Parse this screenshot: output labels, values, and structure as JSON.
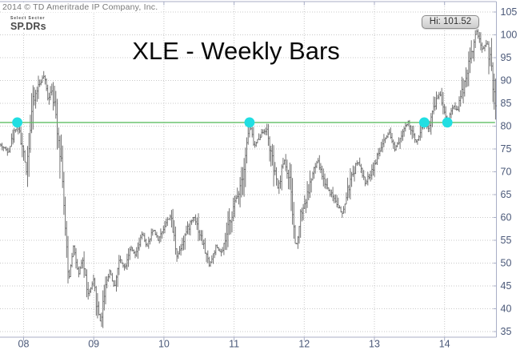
{
  "header": {
    "copyright": "2014 © TD Ameritrade IP Company, Inc.",
    "logo_top": "Select Sector",
    "logo_bottom": "SP.DRs"
  },
  "title": "XLE - Weekly Bars",
  "hi_annotation_label": "Hi: 101.52",
  "colors": {
    "bars": "#606060",
    "grid": "#c9c9c9",
    "axis": "#a8aec6",
    "tick_label": "#4a5878",
    "support_line": "#5fbf63",
    "marker": "#21dee2",
    "title": "#0a0a0a",
    "copyright": "#787878"
  },
  "chart_data": {
    "type": "ohlc-bar",
    "title": "XLE - Weekly Bars",
    "symbol": "XLE",
    "bar_interval": "weekly",
    "grid": true,
    "x_axis": {
      "tick_labels": [
        "08",
        "09",
        "10",
        "11",
        "12",
        "13",
        "14"
      ],
      "tick_years": [
        2008,
        2009,
        2010,
        2011,
        2012,
        2013,
        2014
      ],
      "start": 2007.655,
      "end": 2014.745
    },
    "y_axis": {
      "min": 35,
      "max": 105,
      "step": 5,
      "side": "right"
    },
    "high_annotation": {
      "label": "Hi: 101.52",
      "value": 101.52,
      "year": 2014.46
    },
    "support_line": {
      "value": 80.8,
      "start_year": 2007.655,
      "end_year": 2014.72
    },
    "touch_markers": [
      {
        "year": 2007.91,
        "value": 80.8
      },
      {
        "year": 2011.22,
        "value": 80.8
      },
      {
        "year": 2013.71,
        "value": 80.8
      },
      {
        "year": 2014.04,
        "value": 80.8
      }
    ],
    "weekly_close_keypoints": [
      [
        2007.655,
        76
      ],
      [
        2007.78,
        74.5
      ],
      [
        2007.91,
        80.8
      ],
      [
        2008.04,
        70.5
      ],
      [
        2008.12,
        84
      ],
      [
        2008.2,
        88.5
      ],
      [
        2008.29,
        91
      ],
      [
        2008.35,
        86
      ],
      [
        2008.4,
        88.5
      ],
      [
        2008.48,
        80
      ],
      [
        2008.55,
        71
      ],
      [
        2008.6,
        55
      ],
      [
        2008.64,
        46
      ],
      [
        2008.71,
        54
      ],
      [
        2008.78,
        47
      ],
      [
        2008.84,
        51
      ],
      [
        2008.92,
        43
      ],
      [
        2009.0,
        46
      ],
      [
        2009.04,
        41
      ],
      [
        2009.1,
        37
      ],
      [
        2009.16,
        45
      ],
      [
        2009.23,
        48.5
      ],
      [
        2009.29,
        44.5
      ],
      [
        2009.37,
        51
      ],
      [
        2009.44,
        49
      ],
      [
        2009.52,
        53.5
      ],
      [
        2009.6,
        51.5
      ],
      [
        2009.69,
        56.5
      ],
      [
        2009.76,
        53.5
      ],
      [
        2009.85,
        57.5
      ],
      [
        2009.92,
        55
      ],
      [
        2010.0,
        58
      ],
      [
        2010.09,
        60.5
      ],
      [
        2010.19,
        51.5
      ],
      [
        2010.31,
        56.5
      ],
      [
        2010.43,
        60.5
      ],
      [
        2010.54,
        55
      ],
      [
        2010.65,
        49.5
      ],
      [
        2010.74,
        53.5
      ],
      [
        2010.83,
        52
      ],
      [
        2010.97,
        61
      ],
      [
        2011.06,
        65.5
      ],
      [
        2011.14,
        71
      ],
      [
        2011.22,
        80.7
      ],
      [
        2011.29,
        75.5
      ],
      [
        2011.37,
        78
      ],
      [
        2011.46,
        79.5
      ],
      [
        2011.56,
        71
      ],
      [
        2011.63,
        66
      ],
      [
        2011.71,
        73
      ],
      [
        2011.79,
        68
      ],
      [
        2011.88,
        53
      ],
      [
        2011.95,
        61
      ],
      [
        2012.03,
        64
      ],
      [
        2012.11,
        69
      ],
      [
        2012.19,
        72.5
      ],
      [
        2012.28,
        68
      ],
      [
        2012.37,
        65.5
      ],
      [
        2012.46,
        63.5
      ],
      [
        2012.54,
        60.5
      ],
      [
        2012.64,
        67
      ],
      [
        2012.76,
        72.5
      ],
      [
        2012.87,
        67.5
      ],
      [
        2013.0,
        71.5
      ],
      [
        2013.1,
        75.5
      ],
      [
        2013.21,
        78.5
      ],
      [
        2013.29,
        75
      ],
      [
        2013.39,
        78.5
      ],
      [
        2013.48,
        80.8
      ],
      [
        2013.59,
        76.5
      ],
      [
        2013.71,
        80.7
      ],
      [
        2013.78,
        79.5
      ],
      [
        2013.87,
        85.5
      ],
      [
        2013.93,
        87.3
      ],
      [
        2013.99,
        84
      ],
      [
        2014.04,
        81
      ],
      [
        2014.12,
        84.5
      ],
      [
        2014.18,
        83.5
      ],
      [
        2014.26,
        88
      ],
      [
        2014.34,
        93.5
      ],
      [
        2014.41,
        97.5
      ],
      [
        2014.46,
        101
      ],
      [
        2014.53,
        96.5
      ],
      [
        2014.6,
        98.5
      ],
      [
        2014.66,
        93
      ],
      [
        2014.7,
        87
      ],
      [
        2014.745,
        80.8
      ]
    ]
  }
}
